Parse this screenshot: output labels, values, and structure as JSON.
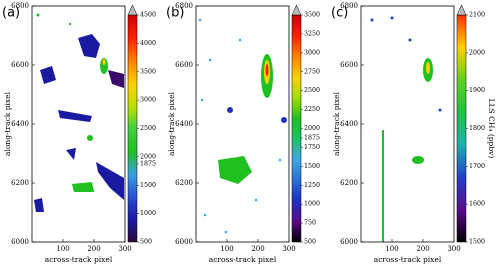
{
  "chart_data": [
    {
      "type": "image",
      "panel_label": "(a)",
      "xlabel": "across-track pixel",
      "ylabel": "along-track pixel",
      "xlim": [
        0,
        300
      ],
      "xticks": [
        100,
        200,
        300
      ],
      "ylim": [
        6000,
        6800
      ],
      "yticks": [
        6000,
        6200,
        6400,
        6600,
        6800
      ],
      "colorbar": {
        "lim": [
          500,
          4500
        ],
        "ticks": [
          500,
          1000,
          1500,
          1875,
          2000,
          2500,
          3000,
          3500,
          4000,
          4500
        ],
        "colormap": [
          "#2a0a3a",
          "#1a1aa0",
          "#2a50d0",
          "#3aa0e0",
          "#20c020",
          "#40d040",
          "#c0e000",
          "#ffd000",
          "#ff8000",
          "#ff2000",
          "#d00000"
        ]
      }
    },
    {
      "type": "image",
      "panel_label": "(b)",
      "xlabel": "across-track pixel",
      "ylabel": "along-track pixel",
      "xlim": [
        0,
        300
      ],
      "xticks": [
        100,
        200,
        300
      ],
      "ylim": [
        6000,
        6800
      ],
      "yticks": [
        6000,
        6200,
        6400,
        6600,
        6800
      ],
      "colorbar": {
        "lim": [
          500,
          3500
        ],
        "ticks": [
          500,
          750,
          1000,
          1250,
          1500,
          1750,
          1875,
          2000,
          2250,
          2500,
          2750,
          3000,
          3250,
          3500
        ],
        "colormap": [
          "#000000",
          "#5a0a8a",
          "#2030c0",
          "#2a70d8",
          "#40a8e8",
          "#20c060",
          "#20c020",
          "#a0e000",
          "#ffd000",
          "#ff8000",
          "#ff2000",
          "#cc0000"
        ]
      }
    },
    {
      "type": "image",
      "panel_label": "(c)",
      "xlabel": "across-track pixel",
      "ylabel": "along-track pixel",
      "xlim": [
        0,
        300
      ],
      "xticks": [
        100,
        200,
        300
      ],
      "ylim": [
        6000,
        6800
      ],
      "yticks": [
        6000,
        6200,
        6400,
        6600,
        6800
      ],
      "colorbar": {
        "lim": [
          1500,
          2100
        ],
        "ticks": [
          1500,
          1600,
          1700,
          1800,
          1900,
          2000,
          2100
        ],
        "label": "LLS CH₄ (ppbv)",
        "colormap": [
          "#000000",
          "#5a0a8a",
          "#2040c8",
          "#20b0b0",
          "#20c040",
          "#60d020",
          "#ffd000",
          "#ff3000"
        ]
      }
    }
  ]
}
